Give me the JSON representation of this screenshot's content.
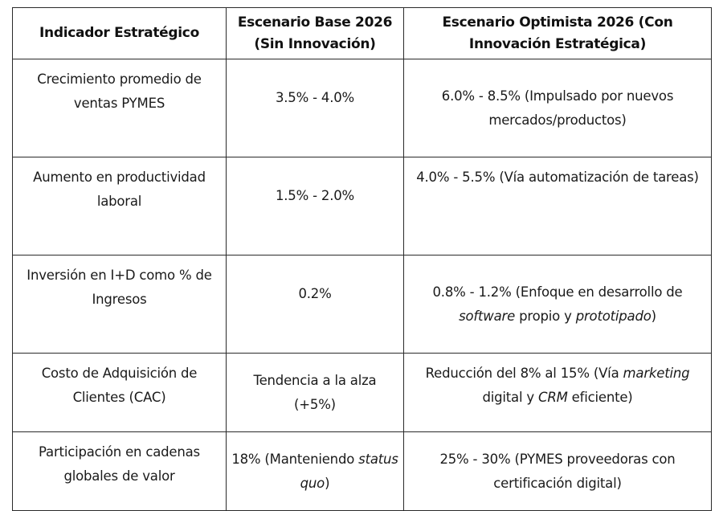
{
  "table": {
    "headers": [
      "Indicador Estratégico",
      "Escenario Base 2026 (Sin Innovación)",
      "Escenario Optimista 2026 (Con Innovación Estratégica)"
    ],
    "header_lines": {
      "col2": [
        "Escenario Base 2026",
        "(Sin Innovación)"
      ],
      "col3": [
        "Escenario Optimista 2026 (Con",
        "Innovación Estratégica)"
      ]
    },
    "rows": [
      {
        "indicator": "Crecimiento promedio de ventas PYMES",
        "base": "3.5% - 4.0%",
        "optimistic": "6.0% - 8.5% (Impulsado por nuevos mercados/productos)"
      },
      {
        "indicator": "Aumento en productividad laboral",
        "base": "1.5% - 2.0%",
        "optimistic": "4.0% - 5.5% (Vía automatización de tareas)"
      },
      {
        "indicator": "Inversión en I+D como % de Ingresos",
        "base": "0.2%",
        "optimistic_parts": {
          "a": "0.8% - 1.2% (Enfoque en desarrollo de ",
          "b_italic": "software",
          "c": " propio y ",
          "d_italic": "prototipado",
          "e": ")"
        }
      },
      {
        "indicator": "Costo de Adquisición de Clientes (CAC)",
        "base": "Tendencia a la alza (+5%)",
        "optimistic_parts": {
          "a": "Reducción del 8% al 15% (Vía ",
          "b_italic": "marketing",
          "c": " digital y ",
          "d_italic": "CRM",
          "e": " eficiente)"
        }
      },
      {
        "indicator": "Participación en cadenas globales de valor",
        "base_parts": {
          "a": "18% (Manteniendo ",
          "b_italic": "status quo",
          "c": ")"
        },
        "optimistic": "25% - 30% (PYMES proveedoras con certificación digital)"
      }
    ]
  }
}
